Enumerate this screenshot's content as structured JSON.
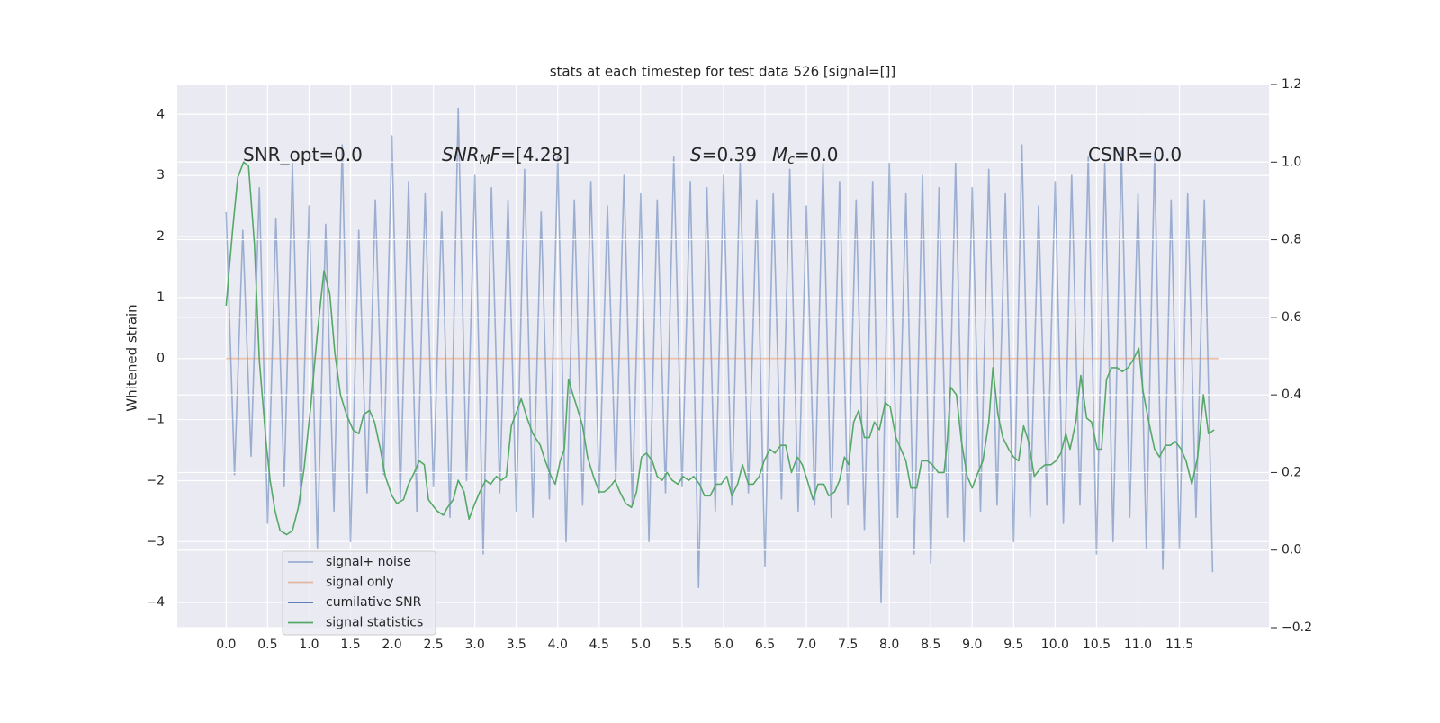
{
  "chart_data": {
    "type": "line",
    "title": "stats at each timestep for test data 526 [signal=[]]",
    "ylabel": "Whitened strain",
    "grid": true,
    "legend": "lower left",
    "xlim": [
      -0.59,
      12.58
    ],
    "ylim": [
      -4.41,
      4.49
    ],
    "y2lim": [
      -0.2,
      1.2
    ],
    "xticks": [
      {
        "value": 0,
        "label": "0.0"
      },
      0.5,
      {
        "value": 1,
        "label": "1.0"
      },
      1.5,
      {
        "value": 2,
        "label": "2.0"
      },
      2.5,
      {
        "value": 3,
        "label": "3.0"
      },
      3.5,
      {
        "value": 4,
        "label": "4.0"
      },
      4.5,
      {
        "value": 5,
        "label": "5.0"
      },
      5.5,
      {
        "value": 6,
        "label": "6.0"
      },
      6.5,
      {
        "value": 7,
        "label": "7.0"
      },
      7.5,
      {
        "value": 8,
        "label": "8.0"
      },
      8.5,
      {
        "value": 9,
        "label": "9.0"
      },
      9.5,
      {
        "value": 10,
        "label": "10.0"
      },
      10.5,
      {
        "value": 11,
        "label": "11.0"
      },
      11.5
    ],
    "yticks": [
      {
        "value": -4,
        "label": "−4"
      },
      {
        "value": -3,
        "label": "−3"
      },
      {
        "value": -2,
        "label": "−2"
      },
      {
        "value": -1,
        "label": "−1"
      },
      0,
      1,
      2,
      3,
      4
    ],
    "y2ticks": [
      {
        "value": -0.2,
        "label": "−0.2"
      },
      {
        "value": 0,
        "label": "0.0"
      },
      0.2,
      0.4,
      0.6,
      0.8,
      {
        "value": 1,
        "label": "1.0"
      },
      1.2
    ],
    "annotations": [
      [
        {
          "text": "SNR_opt=0.0",
          "style": "normal"
        }
      ],
      [
        {
          "text": "SNR",
          "style": "italic"
        },
        {
          "text": "M",
          "style": "italic-sub"
        },
        {
          "text": "F",
          "style": "italic"
        },
        {
          "text": "=[4.28]",
          "style": "normal"
        }
      ],
      [
        {
          "text": "S",
          "style": "italic"
        },
        {
          "text": "=0.39",
          "style": "normal"
        }
      ],
      [
        {
          "text": "M",
          "style": "italic"
        },
        {
          "text": "c",
          "style": "italic-sub"
        },
        {
          "text": "=0.0",
          "style": "normal"
        }
      ],
      [
        {
          "text": "CSNR=0.0",
          "style": "normal"
        }
      ]
    ],
    "series": [
      {
        "name": "signal+ noise",
        "color": "#4c72b0",
        "opacity": 0.5,
        "x": [
          0,
          0.1,
          0.2,
          0.3,
          0.4,
          0.5,
          0.6,
          0.7,
          0.8,
          0.9,
          1,
          1.1,
          1.2,
          1.3,
          1.4,
          1.5,
          1.6,
          1.7,
          1.8,
          1.9,
          2,
          2.1,
          2.2,
          2.3,
          2.4,
          2.5,
          2.6,
          2.7,
          2.8,
          2.9,
          3,
          3.1,
          3.2,
          3.3,
          3.4,
          3.5,
          3.6,
          3.7,
          3.8,
          3.9,
          4,
          4.1,
          4.2,
          4.3,
          4.4,
          4.5,
          4.6,
          4.7,
          4.8,
          4.9,
          5,
          5.1,
          5.2,
          5.3,
          5.4,
          5.5,
          5.6,
          5.7,
          5.8,
          5.9,
          6,
          6.1,
          6.2,
          6.3,
          6.4,
          6.5,
          6.6,
          6.7,
          6.8,
          6.9,
          7,
          7.1,
          7.2,
          7.3,
          7.4,
          7.5,
          7.6,
          7.7,
          7.8,
          7.9,
          8,
          8.1,
          8.2,
          8.3,
          8.4,
          8.5,
          8.6,
          8.7,
          8.8,
          8.9,
          9,
          9.1,
          9.2,
          9.3,
          9.4,
          9.5,
          9.6,
          9.7,
          9.8,
          9.9,
          10,
          10.1,
          10.2,
          10.3,
          10.4,
          10.5,
          10.6,
          10.7,
          10.8,
          10.9,
          11,
          11.1,
          11.2,
          11.3,
          11.4,
          11.5,
          11.6,
          11.7,
          11.8,
          11.9
        ],
        "values": [
          2.4,
          -1.9,
          2.1,
          -1.6,
          2.8,
          -2.7,
          2.3,
          -2.1,
          3.2,
          -2.4,
          2.5,
          -3.1,
          2.2,
          -2.5,
          3.5,
          -3.0,
          2.1,
          -2.2,
          2.6,
          -1.9,
          3.65,
          -2.3,
          2.9,
          -2.5,
          2.7,
          -2.1,
          2.4,
          -2.6,
          4.1,
          -2.0,
          3.0,
          -3.2,
          2.8,
          -2.2,
          2.6,
          -2.5,
          3.1,
          -2.6,
          2.4,
          -2.3,
          3.3,
          -3.0,
          2.6,
          -2.4,
          2.9,
          -2.2,
          2.5,
          -2.0,
          3.0,
          -2.4,
          2.7,
          -3.0,
          2.6,
          -2.2,
          3.3,
          -2.1,
          2.9,
          -3.75,
          2.8,
          -2.5,
          3.0,
          -2.4,
          3.2,
          -2.2,
          2.6,
          -3.4,
          2.7,
          -2.3,
          3.1,
          -2.5,
          2.5,
          -2.4,
          3.2,
          -2.6,
          2.9,
          -2.4,
          2.6,
          -2.8,
          2.9,
          -4.0,
          3.2,
          -2.6,
          2.7,
          -3.2,
          3.0,
          -3.35,
          2.8,
          -2.6,
          3.2,
          -3.0,
          2.8,
          -2.5,
          3.1,
          -2.4,
          2.7,
          -3.0,
          3.5,
          -2.6,
          2.5,
          -2.4,
          2.9,
          -2.7,
          3.0,
          -2.4,
          3.3,
          -3.2,
          3.2,
          -3.0,
          3.4,
          -2.6,
          2.7,
          -3.1,
          3.3,
          -3.45,
          2.6,
          -3.1,
          2.7,
          -2.6,
          2.6,
          -3.5
        ]
      },
      {
        "name": "signal only",
        "color": "#dd8452",
        "opacity": 0.5,
        "x": [
          0,
          11.97
        ],
        "values": [
          0,
          0
        ]
      },
      {
        "name": "cumilative SNR",
        "color": "#4c72b0",
        "opacity": 1,
        "x": [],
        "values": []
      },
      {
        "name": "signal statistics",
        "color": "#55a868",
        "opacity": 1,
        "axis": "y2",
        "x": [
          0,
          0.08,
          0.14,
          0.21,
          0.27,
          0.34,
          0.4,
          0.48,
          0.53,
          0.59,
          0.65,
          0.73,
          0.8,
          0.87,
          0.94,
          1.02,
          1.1,
          1.18,
          1.25,
          1.31,
          1.38,
          1.45,
          1.53,
          1.6,
          1.66,
          1.73,
          1.79,
          1.86,
          1.92,
          2,
          2.06,
          2.14,
          2.2,
          2.27,
          2.33,
          2.39,
          2.44,
          2.51,
          2.55,
          2.62,
          2.67,
          2.74,
          2.8,
          2.87,
          2.93,
          3,
          3.06,
          3.13,
          3.19,
          3.26,
          3.32,
          3.38,
          3.44,
          3.51,
          3.56,
          3.63,
          3.7,
          3.79,
          3.85,
          3.92,
          3.97,
          4.03,
          4.08,
          4.13,
          4.17,
          4.23,
          4.3,
          4.36,
          4.43,
          4.5,
          4.56,
          4.62,
          4.69,
          4.75,
          4.82,
          4.89,
          4.95,
          5.01,
          5.07,
          5.14,
          5.2,
          5.26,
          5.32,
          5.38,
          5.45,
          5.51,
          5.58,
          5.64,
          5.71,
          5.77,
          5.84,
          5.91,
          5.97,
          6.04,
          6.1,
          6.17,
          6.23,
          6.3,
          6.36,
          6.43,
          6.49,
          6.56,
          6.62,
          6.69,
          6.75,
          6.82,
          6.89,
          6.95,
          7.01,
          7.08,
          7.14,
          7.21,
          7.27,
          7.34,
          7.4,
          7.46,
          7.51,
          7.57,
          7.63,
          7.7,
          7.76,
          7.82,
          7.88,
          7.95,
          8.01,
          8.08,
          8.14,
          8.2,
          8.26,
          8.33,
          8.39,
          8.46,
          8.52,
          8.59,
          8.66,
          8.7,
          8.74,
          8.81,
          8.87,
          8.94,
          9,
          9.07,
          9.13,
          9.2,
          9.25,
          9.31,
          9.37,
          9.44,
          9.5,
          9.56,
          9.62,
          9.68,
          9.75,
          9.82,
          9.88,
          9.95,
          10.01,
          10.07,
          10.13,
          10.18,
          10.25,
          10.31,
          10.38,
          10.44,
          10.51,
          10.56,
          10.62,
          10.68,
          10.75,
          10.81,
          10.88,
          10.94,
          11.01,
          11.06,
          11.13,
          11.2,
          11.26,
          11.33,
          11.39,
          11.45,
          11.52,
          11.58,
          11.65,
          11.72,
          11.79,
          11.85,
          11.92
        ],
        "values": [
          0.63,
          0.83,
          0.96,
          1.0,
          0.99,
          0.79,
          0.49,
          0.28,
          0.18,
          0.1,
          0.05,
          0.04,
          0.05,
          0.11,
          0.21,
          0.37,
          0.56,
          0.72,
          0.66,
          0.51,
          0.4,
          0.35,
          0.31,
          0.3,
          0.35,
          0.36,
          0.33,
          0.26,
          0.19,
          0.14,
          0.12,
          0.13,
          0.17,
          0.2,
          0.23,
          0.22,
          0.13,
          0.11,
          0.1,
          0.09,
          0.11,
          0.13,
          0.18,
          0.15,
          0.08,
          0.12,
          0.15,
          0.18,
          0.17,
          0.19,
          0.18,
          0.19,
          0.32,
          0.36,
          0.39,
          0.34,
          0.3,
          0.27,
          0.23,
          0.19,
          0.17,
          0.23,
          0.26,
          0.44,
          0.41,
          0.37,
          0.32,
          0.24,
          0.19,
          0.15,
          0.15,
          0.16,
          0.18,
          0.15,
          0.12,
          0.11,
          0.15,
          0.24,
          0.25,
          0.23,
          0.19,
          0.18,
          0.2,
          0.18,
          0.17,
          0.19,
          0.18,
          0.19,
          0.17,
          0.14,
          0.14,
          0.17,
          0.17,
          0.19,
          0.14,
          0.17,
          0.22,
          0.17,
          0.17,
          0.19,
          0.23,
          0.26,
          0.25,
          0.27,
          0.27,
          0.2,
          0.24,
          0.22,
          0.18,
          0.13,
          0.17,
          0.17,
          0.14,
          0.15,
          0.18,
          0.24,
          0.22,
          0.33,
          0.36,
          0.29,
          0.29,
          0.33,
          0.31,
          0.38,
          0.37,
          0.29,
          0.26,
          0.23,
          0.16,
          0.16,
          0.23,
          0.23,
          0.22,
          0.2,
          0.2,
          0.28,
          0.42,
          0.4,
          0.28,
          0.19,
          0.16,
          0.2,
          0.23,
          0.33,
          0.47,
          0.35,
          0.29,
          0.26,
          0.24,
          0.23,
          0.32,
          0.28,
          0.19,
          0.21,
          0.22,
          0.22,
          0.23,
          0.25,
          0.3,
          0.26,
          0.33,
          0.45,
          0.34,
          0.33,
          0.26,
          0.26,
          0.44,
          0.47,
          0.47,
          0.46,
          0.47,
          0.49,
          0.52,
          0.41,
          0.33,
          0.26,
          0.24,
          0.27,
          0.27,
          0.28,
          0.26,
          0.23,
          0.17,
          0.24,
          0.4,
          0.3,
          0.31
        ]
      }
    ]
  }
}
